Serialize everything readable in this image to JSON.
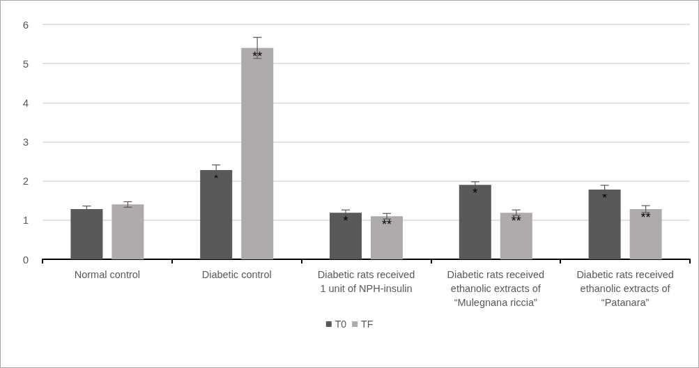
{
  "chart_data": {
    "type": "bar",
    "categories": [
      "Normal control",
      "Diabetic control",
      "Diabetic rats received\n1 unit of NPH-insulin",
      "Diabetic rats received\nethanolic extracts of\n“Mulegnana riccia”",
      "Diabetic rats received\nethanolic extracts of\n“Patanara”"
    ],
    "series": [
      {
        "name": "T0",
        "color": "#595959",
        "values": [
          1.28,
          2.28,
          1.19,
          1.9,
          1.78
        ],
        "errors": [
          0.08,
          0.13,
          0.07,
          0.08,
          0.11
        ],
        "value_labels": [
          null,
          "*",
          "*",
          "*",
          "*"
        ]
      },
      {
        "name": "TF",
        "color": "#afabab",
        "values": [
          1.4,
          5.4,
          1.1,
          1.19,
          1.28
        ],
        "errors": [
          0.07,
          0.27,
          0.07,
          0.07,
          0.09
        ],
        "value_labels": [
          null,
          "**",
          "**",
          "**",
          "**"
        ]
      }
    ],
    "ylim": [
      0,
      6
    ],
    "yticks": [
      0,
      1,
      2,
      3,
      4,
      5,
      6
    ],
    "grid": "y",
    "legend": "bottom"
  }
}
